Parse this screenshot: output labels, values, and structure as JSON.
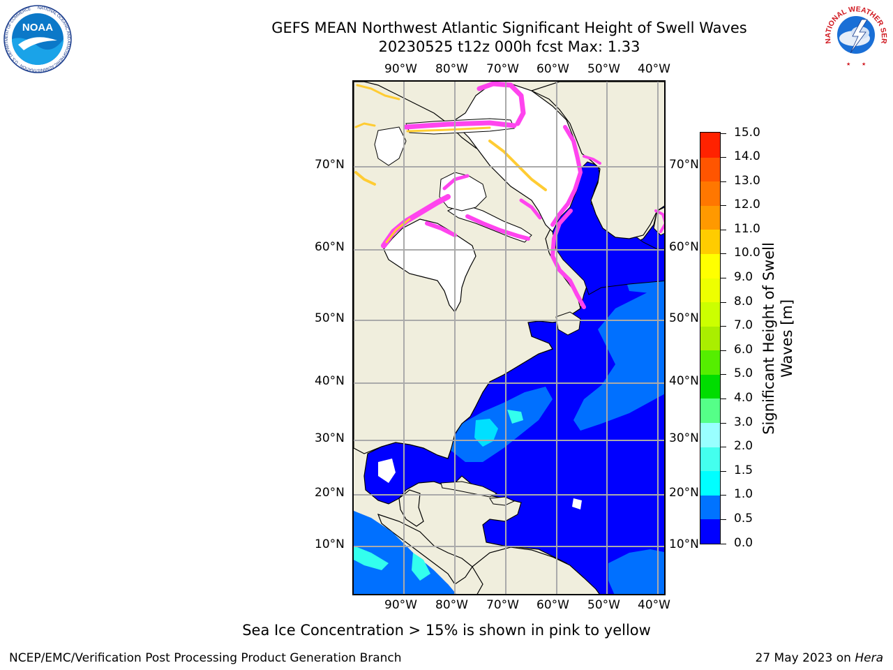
{
  "header": {
    "title_line1": "GEFS MEAN Northwest Atlantic Significant Height of Swell Waves",
    "title_line2": "20230525 t12z 000h fcst   Max: 1.33"
  },
  "logos": {
    "noaa_text": "NOAA",
    "noaa_ring": "NATIONAL OCEANIC AND ATMOSPHERIC ADMINISTRATION · U.S. DEPARTMENT OF COMMERCE",
    "nws_ring": "NATIONAL WEATHER SERVICE"
  },
  "map": {
    "lon_labels": [
      "90°W",
      "80°W",
      "70°W",
      "60°W",
      "50°W",
      "40°W"
    ],
    "lat_labels": [
      "70°N",
      "60°N",
      "50°N",
      "40°N",
      "30°N",
      "20°N",
      "10°N"
    ],
    "projection": "mercator",
    "gridlines": true,
    "colors": {
      "land": "#f0eedd",
      "ice_pink": "#ff44ee",
      "ice_yellow": "#ffcc33",
      "ocean_low": "#0000ff",
      "ocean_mid": "#0070ff",
      "gridline": "#aaaaaa"
    }
  },
  "colorbar": {
    "title_line1": "Significant Height of Swell",
    "title_line2": "Waves [m]",
    "tick_labels": [
      "0.0",
      "0.5",
      "1.0",
      "1.5",
      "2.0",
      "3.0",
      "4.0",
      "5.0",
      "6.0",
      "7.0",
      "8.0",
      "9.0",
      "10.0",
      "11.0",
      "12.0",
      "13.0",
      "14.0",
      "15.0"
    ],
    "colors": [
      "#0000ff",
      "#0073ff",
      "#00ffff",
      "#44ffee",
      "#99ffff",
      "#55ff88",
      "#00dd00",
      "#55ee00",
      "#aaee00",
      "#ccff00",
      "#eeff00",
      "#ffff00",
      "#ffcc00",
      "#ff9900",
      "#ff7700",
      "#ff5500",
      "#ff2200"
    ]
  },
  "footer": {
    "ice_note": "Sea Ice Concentration > 15% is shown in pink to yellow",
    "credit": "NCEP/EMC/Verification Post Processing Product Generation Branch",
    "date_prefix": "27 May 2023 on ",
    "host": "Hera"
  }
}
